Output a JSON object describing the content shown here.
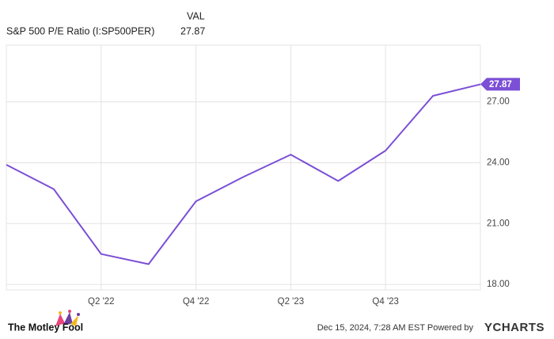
{
  "chart_data": {
    "type": "line",
    "legend_header": "VAL",
    "categories": [
      null,
      null,
      "Q2 '22",
      null,
      "Q4 '22",
      null,
      "Q2 '23",
      null,
      "Q4 '23",
      null,
      null
    ],
    "series": [
      {
        "name": "S&P 500 P/E Ratio (I:SP500PER)",
        "color": "#7b4fd6",
        "values": [
          23.9,
          22.7,
          19.5,
          19.0,
          22.1,
          23.3,
          24.4,
          23.1,
          24.6,
          27.3,
          27.87
        ]
      }
    ],
    "ylim": [
      17.73,
      29.8
    ],
    "yticks": [
      {
        "value": 18,
        "label": "18.00"
      },
      {
        "value": 21,
        "label": "21.00"
      },
      {
        "value": 24,
        "label": "24.00"
      },
      {
        "value": 27,
        "label": "27.00"
      }
    ],
    "grid": true,
    "brand": "The Motley Fool",
    "timestamp": "Dec 15, 2024, 7:28 AM EST Powered by",
    "provider": "YCHARTS"
  }
}
